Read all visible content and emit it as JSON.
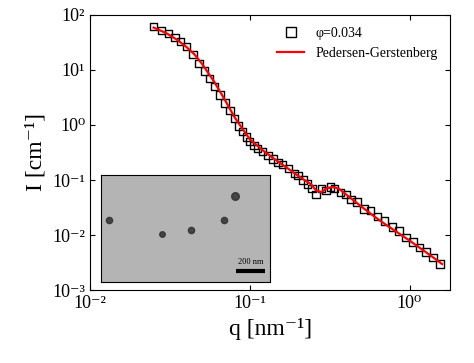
{
  "chart_data": {
    "type": "scatter",
    "x_label": "q [nm⁻¹]",
    "y_label": "I [cm⁻¹]",
    "log": true,
    "legend": "upper right",
    "xlim": [
      0.01,
      1.8
    ],
    "ylim": [
      0.001,
      100
    ],
    "xticks": [
      {
        "value": 0.01,
        "label": "10⁻²"
      },
      {
        "value": 0.1,
        "label": "10⁻¹"
      },
      {
        "value": 1,
        "label": "10⁰"
      }
    ],
    "yticks": [
      {
        "value": 0.001,
        "label": "10⁻³"
      },
      {
        "value": 0.01,
        "label": "10⁻²"
      },
      {
        "value": 0.1,
        "label": "10⁻¹"
      },
      {
        "value": 1,
        "label": "10⁰"
      },
      {
        "value": 10,
        "label": "10¹"
      },
      {
        "value": 100,
        "label": "10²"
      }
    ],
    "annotations": [
      "200 nm"
    ],
    "series": [
      {
        "name": "φ=0.034",
        "type": "scatter",
        "marker": "square",
        "color": "#000000",
        "x": [
          0.025,
          0.028,
          0.031,
          0.034,
          0.037,
          0.04,
          0.044,
          0.048,
          0.052,
          0.056,
          0.06,
          0.065,
          0.07,
          0.075,
          0.08,
          0.085,
          0.09,
          0.095,
          0.1,
          0.106,
          0.112,
          0.12,
          0.13,
          0.14,
          0.15,
          0.16,
          0.175,
          0.19,
          0.2,
          0.215,
          0.23,
          0.245,
          0.26,
          0.28,
          0.3,
          0.32,
          0.34,
          0.37,
          0.4,
          0.43,
          0.47,
          0.52,
          0.57,
          0.63,
          0.7,
          0.78,
          0.86,
          0.95,
          1.05,
          1.15,
          1.27,
          1.4,
          1.55
        ],
        "values": [
          60,
          52,
          45,
          38,
          32,
          26,
          19,
          13,
          9.5,
          7,
          5,
          3.5,
          2.5,
          1.8,
          1.3,
          0.95,
          0.75,
          0.6,
          0.5,
          0.42,
          0.37,
          0.33,
          0.28,
          0.24,
          0.21,
          0.19,
          0.16,
          0.13,
          0.12,
          0.1,
          0.085,
          0.07,
          0.055,
          0.07,
          0.065,
          0.075,
          0.07,
          0.06,
          0.055,
          0.045,
          0.04,
          0.03,
          0.028,
          0.022,
          0.018,
          0.014,
          0.012,
          0.009,
          0.0075,
          0.006,
          0.005,
          0.004,
          0.003
        ]
      },
      {
        "name": "Pedersen-Gerstenberg",
        "type": "line",
        "line_style": "solid",
        "color": "#ff0000",
        "x": [
          0.025,
          0.03,
          0.035,
          0.04,
          0.045,
          0.05,
          0.06,
          0.07,
          0.08,
          0.09,
          0.1,
          0.12,
          0.14,
          0.16,
          0.18,
          0.2,
          0.22,
          0.24,
          0.26,
          0.28,
          0.3,
          0.33,
          0.36,
          0.4,
          0.45,
          0.5,
          0.6,
          0.7,
          0.85,
          1.0,
          1.2,
          1.4,
          1.6
        ],
        "values": [
          58,
          46,
          35,
          26,
          19,
          13,
          6,
          2.8,
          1.4,
          0.85,
          0.55,
          0.35,
          0.25,
          0.19,
          0.15,
          0.12,
          0.1,
          0.085,
          0.065,
          0.06,
          0.07,
          0.075,
          0.07,
          0.055,
          0.042,
          0.033,
          0.022,
          0.016,
          0.011,
          0.008,
          0.0055,
          0.004,
          0.003
        ]
      }
    ]
  }
}
